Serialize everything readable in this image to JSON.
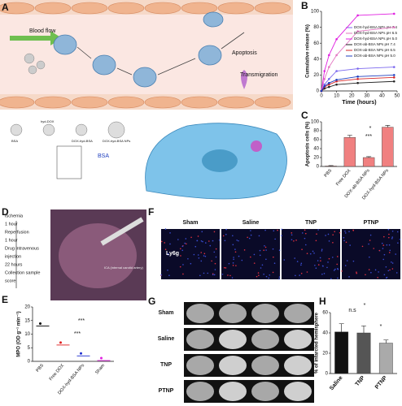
{
  "panel_labels": [
    "A",
    "B",
    "C",
    "D",
    "E",
    "F",
    "G",
    "H"
  ],
  "panel_a": {
    "blood_flow": "Blood flow",
    "apoptosis": "Apoptosis",
    "transmigration": "Transmigration",
    "bsa": "BSA",
    "hyd_dox": "hyd-DOX",
    "dox_hyd_bsa": "DOX-hyd-BSA",
    "nps": "DOX-hyd-BSA NPs",
    "bsa_blue": "BSA"
  },
  "panel_d": {
    "steps": [
      "Ischemia",
      "1 hour",
      "Reperfusion",
      "1 hour",
      "Drug intravenous",
      "injection",
      "22 hours",
      "Collection sample",
      "score"
    ],
    "annotation": "ICA (internal carotid artery)"
  },
  "panel_f": {
    "columns": [
      "Sham",
      "Saline",
      "TNP",
      "PTNP"
    ],
    "row": "Ly6g"
  },
  "panel_g": {
    "rows": [
      "Sham",
      "Saline",
      "TNP",
      "PTNP"
    ]
  },
  "chart_data": [
    {
      "type": "line",
      "xlabel": "Time (hours)",
      "ylabel": "Cumulative release (%)",
      "x": [
        0,
        2,
        5,
        10,
        24,
        48
      ],
      "xlim": [
        0,
        50
      ],
      "xticks": [
        0,
        10,
        20,
        30,
        40,
        50
      ],
      "ylim": [
        0,
        100
      ],
      "yticks": [
        0,
        20,
        40,
        60,
        80,
        100
      ],
      "series": [
        {
          "name": "DOX-hyd-BSA NPs pH 7.4",
          "color": "#7b68ee",
          "values": [
            0,
            8,
            15,
            25,
            28,
            30
          ]
        },
        {
          "name": "DOX-hyd-BSA NPs pH 6.5",
          "color": "#e377c2",
          "values": [
            0,
            15,
            30,
            45,
            75,
            80
          ]
        },
        {
          "name": "DOX-hyd-BSA NPs pH 5.0",
          "color": "#e020e0",
          "values": [
            0,
            25,
            45,
            65,
            95,
            97
          ]
        },
        {
          "name": "DOX-ab-BSA NPs pH 7.4",
          "color": "#222222",
          "values": [
            0,
            3,
            5,
            8,
            10,
            12
          ]
        },
        {
          "name": "DOX-ab-BSA NPs pH 6.5",
          "color": "#d62728",
          "values": [
            0,
            5,
            8,
            12,
            15,
            17
          ]
        },
        {
          "name": "DOX-ab-BSA NPs pH 5.0",
          "color": "#1f3fbf",
          "values": [
            0,
            6,
            10,
            14,
            18,
            20
          ]
        }
      ]
    },
    {
      "type": "bar",
      "ylabel": "Apoptosis cells (%)",
      "categories": [
        "PBS",
        "Free DOX",
        "DOX-ab-BSA NPs",
        "DOX-hyd-BSA NPs"
      ],
      "values": [
        1,
        65,
        20,
        88
      ],
      "errors": [
        1,
        5,
        2,
        4
      ],
      "colors": [
        "#f08080",
        "#f08080",
        "#f08080",
        "#f08080"
      ],
      "ylim": [
        0,
        100
      ],
      "yticks": [
        0,
        20,
        40,
        60,
        80,
        100
      ],
      "annotations": [
        "*",
        "***"
      ]
    },
    {
      "type": "dot",
      "ylabel": "MPO (OD g⁻¹ min⁻¹)",
      "categories": [
        "PBS",
        "Free DOX",
        "DOX-hyd-BSA NPs",
        "Sham"
      ],
      "values": [
        13,
        6,
        2,
        0.3
      ],
      "colors": [
        "#000000",
        "#e02020",
        "#2030d0",
        "#e020e0"
      ],
      "ylim": [
        0,
        20
      ],
      "yticks": [
        0,
        5,
        10,
        15,
        20
      ],
      "annotations": [
        "***",
        "***"
      ]
    },
    {
      "type": "bar",
      "ylabel": "% of infarcted hemisphere",
      "categories": [
        "Saline",
        "TNP",
        "PTNP"
      ],
      "values": [
        41,
        40,
        30
      ],
      "errors": [
        8,
        7,
        3
      ],
      "colors": [
        "#111111",
        "#555555",
        "#aaaaaa"
      ],
      "ylim": [
        0,
        60
      ],
      "yticks": [
        0,
        20,
        40,
        60
      ],
      "annotations": [
        "n.s",
        "*",
        "*"
      ]
    }
  ]
}
